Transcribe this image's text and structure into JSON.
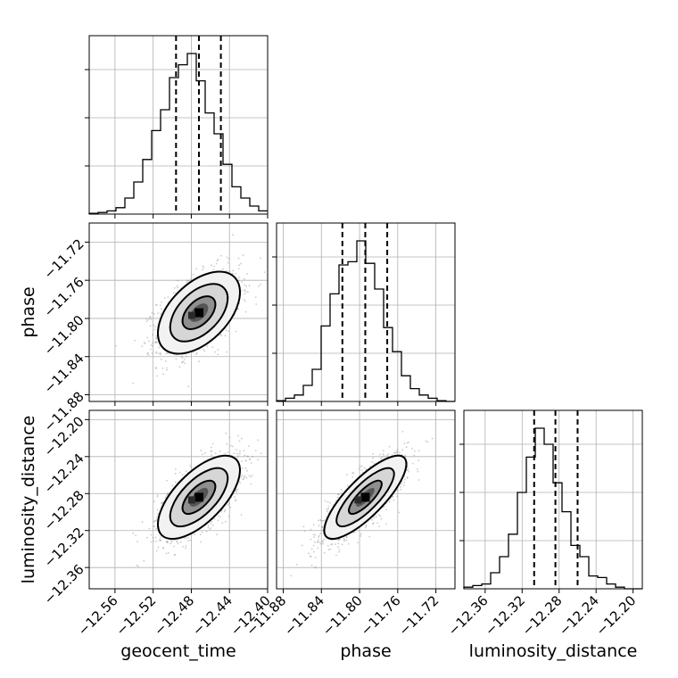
{
  "chart_data": {
    "type": "corner",
    "parameters": [
      "geocent_time",
      "phase",
      "luminosity_distance"
    ],
    "labels": {
      "x": [
        "geocent_time",
        "phase",
        "luminosity_distance"
      ],
      "y": [
        "phase",
        "luminosity_distance"
      ]
    },
    "ranges": {
      "geocent_time": [
        -12.587,
        -12.4
      ],
      "phase": [
        -11.887,
        -11.7
      ],
      "luminosity_distance": [
        -12.383,
        -12.19
      ]
    },
    "ticks": {
      "geocent_time": [
        "-12.56",
        "-12.52",
        "-12.48",
        "-12.44",
        "-12.40"
      ],
      "phase": [
        "-11.88",
        "-11.84",
        "-11.80",
        "-11.76",
        "-11.72"
      ],
      "luminosity_distance": [
        "-12.36",
        "-12.32",
        "-12.28",
        "-12.24",
        "-12.20"
      ]
    },
    "quantiles": {
      "geocent_time": [
        -12.496,
        -12.472,
        -12.449
      ],
      "phase": [
        -11.818,
        -11.794,
        -11.771
      ],
      "luminosity_distance": [
        -12.307,
        -12.284,
        -12.26
      ]
    },
    "histograms": {
      "geocent_time": {
        "range": [
          -12.587,
          -12.4
        ],
        "counts": [
          0.005,
          0.01,
          0.02,
          0.04,
          0.1,
          0.2,
          0.34,
          0.52,
          0.65,
          0.85,
          0.93,
          1.0,
          0.83,
          0.63,
          0.5,
          0.31,
          0.17,
          0.1,
          0.05,
          0.02
        ]
      },
      "phase": {
        "range": [
          -11.887,
          -11.7
        ],
        "counts": [
          0.005,
          0.02,
          0.04,
          0.1,
          0.2,
          0.47,
          0.67,
          0.85,
          0.87,
          1.0,
          0.86,
          0.7,
          0.46,
          0.31,
          0.16,
          0.08,
          0.04,
          0.02,
          0.005,
          0
        ]
      },
      "luminosity_distance": {
        "range": [
          -12.383,
          -12.19
        ],
        "counts": [
          0.01,
          0.02,
          0.03,
          0.1,
          0.2,
          0.34,
          0.6,
          0.82,
          1.0,
          0.9,
          0.66,
          0.48,
          0.27,
          0.2,
          0.08,
          0.07,
          0.03,
          0.01,
          0,
          0
        ]
      }
    },
    "pairs": [
      {
        "x": "geocent_time",
        "y": "phase",
        "mean": [
          -12.472,
          -11.794
        ],
        "sd": [
          0.0215,
          0.0215
        ],
        "corr": 0.5
      },
      {
        "x": "geocent_time",
        "y": "luminosity_distance",
        "mean": [
          -12.472,
          -12.284
        ],
        "sd": [
          0.0215,
          0.0225
        ],
        "corr": 0.65
      },
      {
        "x": "phase",
        "y": "luminosity_distance",
        "mean": [
          -11.794,
          -12.284
        ],
        "sd": [
          0.0215,
          0.0225
        ],
        "corr": 0.8
      }
    ],
    "grid": true,
    "colors": {
      "line": "#000000",
      "grid": "#b0b0b0",
      "points": "#8c8c8c"
    }
  }
}
